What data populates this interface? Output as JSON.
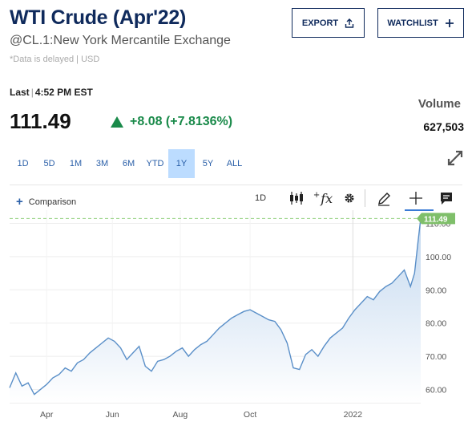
{
  "header": {
    "title": "WTI Crude (Apr'22)",
    "subtitle": "@CL.1:New York Mercantile Exchange",
    "delay_note": "*Data is delayed | USD",
    "export_label": "EXPORT",
    "watchlist_label": "WATCHLIST"
  },
  "quote": {
    "last_label": "Last",
    "time": "4:52 PM EST",
    "price": "111.49",
    "change": "+8.08 (+7.8136%)",
    "volume_label": "Volume",
    "volume": "627,503"
  },
  "ranges": [
    "1D",
    "5D",
    "1M",
    "3M",
    "6M",
    "YTD",
    "1Y",
    "5Y",
    "ALL"
  ],
  "active_range": "1Y",
  "toolbar": {
    "comparison_label": "Comparison",
    "interval_label": "1D",
    "icons": [
      "candlestick-icon",
      "function-icon",
      "gear-icon",
      "pencil-icon",
      "crosshair-icon",
      "comment-icon"
    ]
  },
  "colors": {
    "accent": "#0f2a5c",
    "up": "#1a8a4a",
    "line": "#5a8fc8",
    "last_price_tag": "#7fbf6a"
  },
  "chart_data": {
    "type": "area",
    "y_ticks": [
      "60.00",
      "70.00",
      "80.00",
      "90.00",
      "100.00",
      "110.00"
    ],
    "x_ticks": [
      "Apr",
      "Jun",
      "Aug",
      "Oct",
      "2022"
    ],
    "ylim": [
      56,
      114
    ],
    "last_value": "111.49",
    "x": [
      0,
      0.015,
      0.03,
      0.045,
      0.06,
      0.075,
      0.09,
      0.105,
      0.12,
      0.135,
      0.15,
      0.165,
      0.18,
      0.195,
      0.21,
      0.225,
      0.24,
      0.255,
      0.27,
      0.285,
      0.3,
      0.315,
      0.33,
      0.345,
      0.36,
      0.375,
      0.39,
      0.405,
      0.42,
      0.435,
      0.45,
      0.465,
      0.48,
      0.495,
      0.51,
      0.525,
      0.54,
      0.555,
      0.57,
      0.585,
      0.6,
      0.615,
      0.63,
      0.645,
      0.66,
      0.675,
      0.69,
      0.705,
      0.72,
      0.735,
      0.75,
      0.765,
      0.78,
      0.795,
      0.81,
      0.825,
      0.84,
      0.855,
      0.87,
      0.885,
      0.9,
      0.915,
      0.93,
      0.945,
      0.96,
      0.975,
      0.985,
      0.993,
      1.0
    ],
    "values": [
      60.5,
      65,
      61,
      62,
      58.5,
      60,
      61.5,
      63.5,
      64.5,
      66.5,
      65.5,
      68,
      69,
      71,
      72.5,
      74,
      75.5,
      74.5,
      72.5,
      69,
      71,
      73,
      67,
      65.5,
      68.5,
      69,
      70,
      71.5,
      72.5,
      70,
      72,
      73.5,
      74.5,
      76.5,
      78.5,
      80,
      81.5,
      82.5,
      83.5,
      84,
      83,
      82,
      81,
      80.5,
      78,
      74,
      66.5,
      66,
      70.5,
      72,
      70,
      73,
      75.5,
      77,
      78.5,
      81.5,
      84,
      86,
      88,
      87,
      89.5,
      91,
      92,
      94,
      96,
      91,
      95,
      104,
      111.49
    ]
  }
}
